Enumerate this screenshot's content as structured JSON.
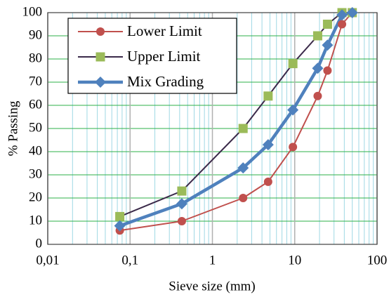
{
  "chart_data": {
    "type": "line",
    "x_label": "Sieve size (mm)",
    "y_label": "% Passing",
    "x": [
      0.075,
      0.425,
      2.36,
      4.75,
      9.5,
      19,
      25,
      37.5,
      50
    ],
    "series": [
      {
        "name": "Lower Limit",
        "color": "#c0504d",
        "marker_color": "#c0504d",
        "marker": "circle",
        "line_width": 2,
        "values": [
          6,
          10,
          20,
          27,
          42,
          64,
          75,
          95,
          100
        ]
      },
      {
        "name": "Upper Limit",
        "color": "#3b2a4a",
        "marker_color": "#9bbb59",
        "marker": "square",
        "line_width": 2,
        "values": [
          12,
          23,
          50,
          64,
          78,
          90,
          95,
          100,
          100
        ]
      },
      {
        "name": "Mix Grading",
        "color": "#4f81bd",
        "marker_color": "#4f81bd",
        "marker": "diamond",
        "line_width": 4.5,
        "values": [
          8,
          17.5,
          33,
          43,
          58,
          76,
          86,
          99,
          100
        ]
      }
    ],
    "x_log": true,
    "xlim": [
      0.01,
      100
    ],
    "xticks": [
      {
        "value": 0.01,
        "label": "0,01"
      },
      {
        "value": 0.1,
        "label": "0,1"
      },
      1,
      10,
      100
    ],
    "ylim": [
      0,
      100
    ],
    "yticks": [
      0,
      10,
      20,
      30,
      40,
      50,
      60,
      70,
      80,
      90,
      100
    ],
    "grid": true,
    "minor_grid": true,
    "legend": "upper left"
  }
}
